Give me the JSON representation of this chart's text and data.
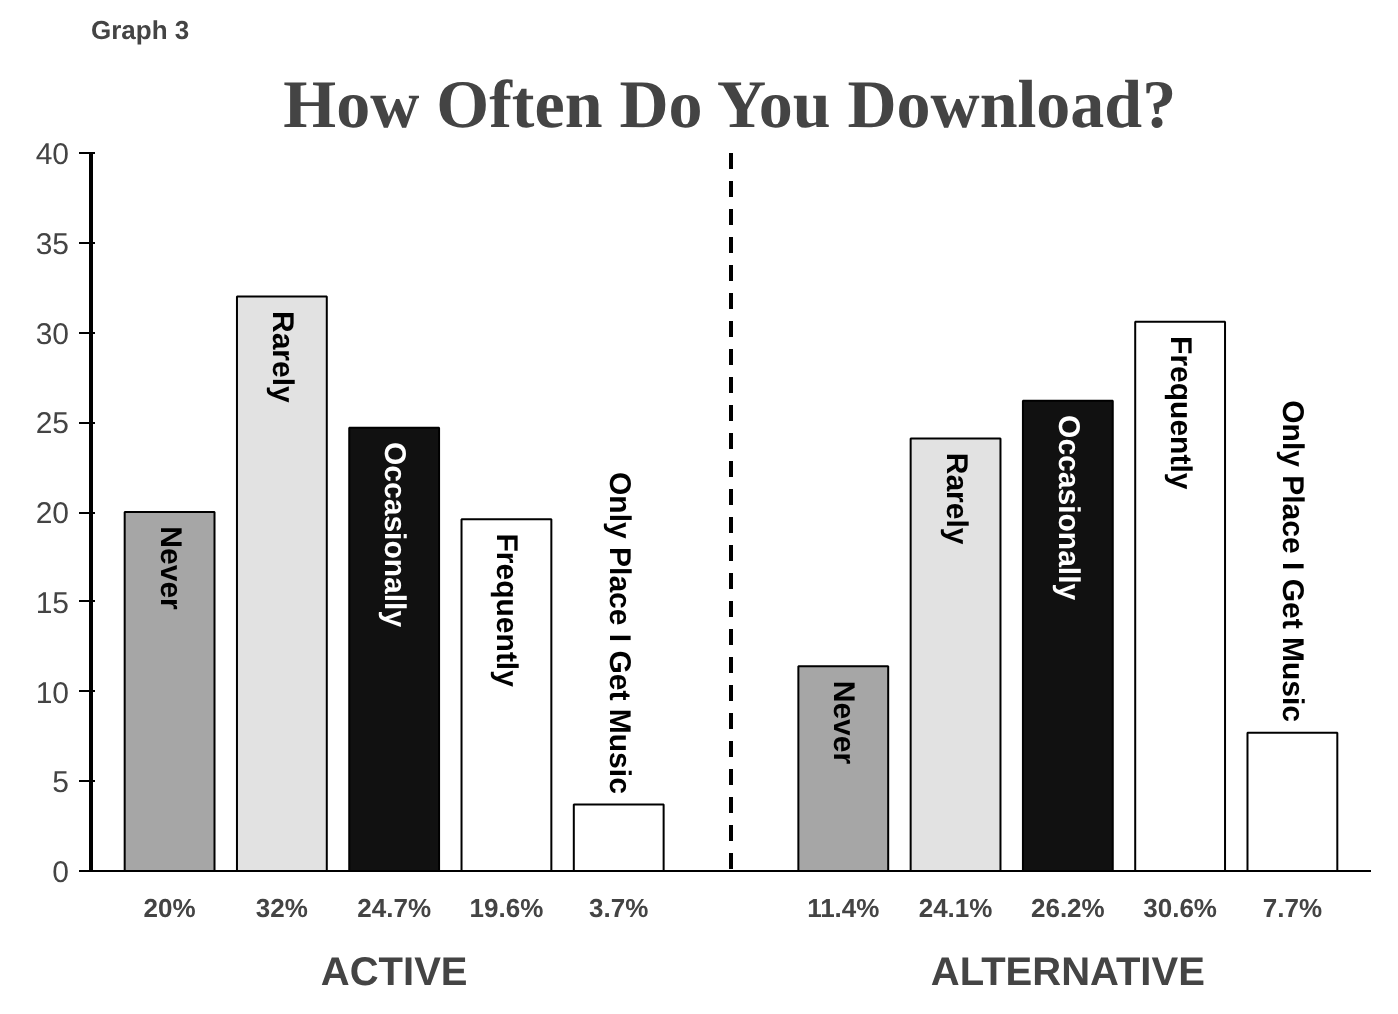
{
  "chart_data": {
    "type": "bar",
    "title": "How Often Do You Download?",
    "subtitle": "Graph 3",
    "categories": [
      "ACTIVE",
      "ALTERNATIVE"
    ],
    "series": [
      {
        "name": "Never",
        "color": "#a6a6a6",
        "values": [
          20,
          11.4
        ],
        "value_labels": [
          "20%",
          "11.4%"
        ]
      },
      {
        "name": "Rarely",
        "color": "#e2e2e2",
        "values": [
          32,
          24.1
        ],
        "value_labels": [
          "32%",
          "24.1%"
        ]
      },
      {
        "name": "Occasionally",
        "color": "#111111",
        "values": [
          24.7,
          26.2
        ],
        "value_labels": [
          "24.7%",
          "26.2%"
        ]
      },
      {
        "name": "Frequently",
        "color": "#ffffff",
        "values": [
          19.6,
          30.6
        ],
        "value_labels": [
          "19.6%",
          "30.6%"
        ]
      },
      {
        "name": "Only Place I Get Music",
        "color": "#ffffff",
        "values": [
          3.7,
          7.7
        ],
        "value_labels": [
          "3.7%",
          "7.7%"
        ]
      }
    ],
    "ylim": [
      0,
      40
    ],
    "yticks": [
      0,
      5,
      10,
      15,
      20,
      25,
      30,
      35,
      40
    ],
    "grid": false,
    "legend": false
  }
}
